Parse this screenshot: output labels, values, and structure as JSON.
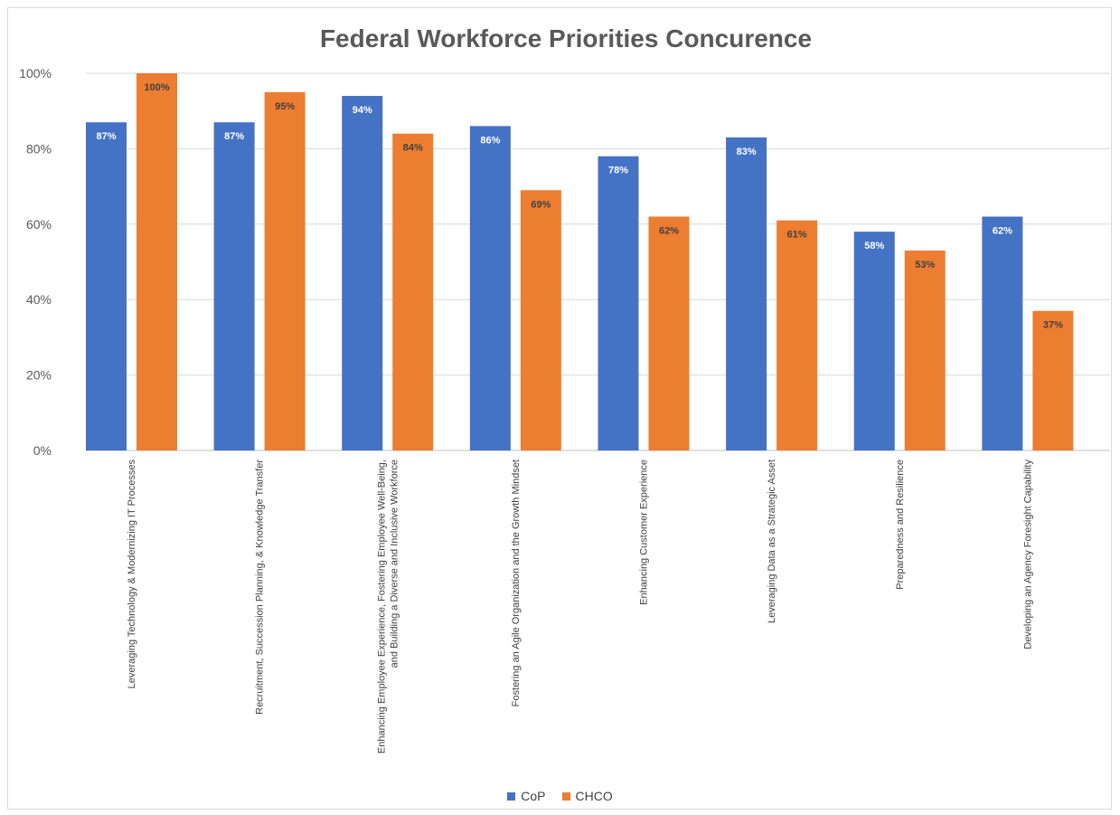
{
  "chart_data": {
    "type": "bar",
    "title": "Federal Workforce Priorities Concurence",
    "xlabel": "",
    "ylabel": "",
    "ylim": [
      0,
      100
    ],
    "y_ticks": [
      "0%",
      "20%",
      "40%",
      "60%",
      "80%",
      "100%"
    ],
    "y_tick_values": [
      0,
      20,
      40,
      60,
      80,
      100
    ],
    "grid": true,
    "legend_position": "bottom",
    "categories": [
      "Leveraging Technology & Modernizing IT Processes",
      "Recruitment, Succession Planning, & Knowledge Transfer",
      "Enhancing Employee Experience, Fostering Employee Well-Being, and Building a Diverse and Inclusive Workforce",
      "Fostering an Agile Organization and the Growth Mindset",
      "Enhancing Customer Experience",
      "Leveraging Data as a Strategic Asset",
      "Preparedness and Resilience",
      "Developing an Agency Foresight Capability"
    ],
    "series": [
      {
        "name": "CoP",
        "color": "#4472c4",
        "label_color": "#ffffff",
        "values": [
          87,
          87,
          94,
          86,
          78,
          83,
          58,
          62
        ],
        "labels": [
          "87%",
          "87%",
          "94%",
          "86%",
          "78%",
          "83%",
          "58%",
          "62%"
        ]
      },
      {
        "name": "CHCO",
        "color": "#ed7d31",
        "label_color": "#404040",
        "values": [
          100,
          95,
          84,
          69,
          62,
          61,
          53,
          37
        ],
        "labels": [
          "100%",
          "95%",
          "84%",
          "69%",
          "62%",
          "61%",
          "53%",
          "37%"
        ]
      }
    ]
  }
}
